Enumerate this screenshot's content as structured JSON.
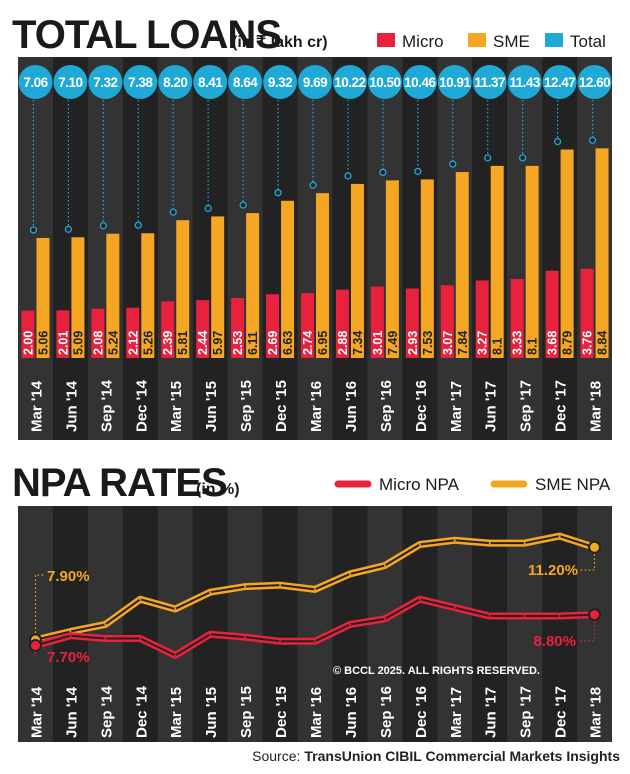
{
  "colors": {
    "micro": "#e8213d",
    "sme": "#f5a623",
    "total": "#1fa9d6",
    "panel": "#222222",
    "stripe": "#333333",
    "text": "#1a1a1a",
    "white": "#ffffff"
  },
  "chart_data": [
    {
      "type": "bar",
      "title": "TOTAL LOANS",
      "subtitle": "(in ₹ lakh cr)",
      "legend": [
        "Micro",
        "SME",
        "Total"
      ],
      "categories": [
        "Mar '14",
        "Jun '14",
        "Sep '14",
        "Dec '14",
        "Mar '15",
        "Jun '15",
        "Sep '15",
        "Dec '15",
        "Mar '16",
        "Jun '16",
        "Sep '16",
        "Dec '16",
        "Mar '17",
        "Jun '17",
        "Sep '17",
        "Dec '17",
        "Mar '18"
      ],
      "series": [
        {
          "name": "Micro",
          "values": [
            2.0,
            2.01,
            2.08,
            2.12,
            2.39,
            2.44,
            2.53,
            2.69,
            2.74,
            2.88,
            3.01,
            2.93,
            3.07,
            3.27,
            3.33,
            3.68,
            3.76
          ],
          "labels": [
            "2.00",
            "2.01",
            "2.08",
            "2.12",
            "2.39",
            "2.44",
            "2.53",
            "2.69",
            "2.74",
            "2.88",
            "3.01",
            "2.93",
            "3.07",
            "3.27",
            "3.33",
            "3.68",
            "3.76"
          ]
        },
        {
          "name": "SME",
          "values": [
            5.06,
            5.09,
            5.24,
            5.26,
            5.81,
            5.97,
            6.11,
            6.63,
            6.95,
            7.34,
            7.49,
            7.53,
            7.84,
            8.1,
            8.1,
            8.79,
            8.84
          ],
          "labels": [
            "5.06",
            "5.09",
            "5.24",
            "5.26",
            "5.81",
            "5.97",
            "6.11",
            "6.63",
            "6.95",
            "7.34",
            "7.49",
            "7.53",
            "7.84",
            "8.1",
            "8.1",
            "8.79",
            "8.84"
          ]
        }
      ],
      "totals": [
        "7.06",
        "7.10",
        "7.32",
        "7.38",
        "8.20",
        "8.41",
        "8.64",
        "9.32",
        "9.69",
        "10.22",
        "10.50",
        "10.46",
        "10.91",
        "11.37",
        "11.43",
        "12.47",
        "12.60"
      ],
      "ylim": [
        0,
        9
      ]
    },
    {
      "type": "line",
      "title": "NPA RATES",
      "subtitle": "(in %)",
      "legend": [
        "Micro NPA",
        "SME NPA"
      ],
      "categories": [
        "Mar '14",
        "Jun '14",
        "Sep '14",
        "Dec '14",
        "Mar '15",
        "Jun '15",
        "Sep '15",
        "Dec '15",
        "Mar '16",
        "Jun '16",
        "Sep '16",
        "Dec '16",
        "Mar '17",
        "Jun '17",
        "Sep '17",
        "Dec '17",
        "Mar '18"
      ],
      "series": [
        {
          "name": "Micro NPA",
          "values": [
            7.7,
            8.05,
            7.95,
            7.95,
            7.35,
            8.1,
            8.0,
            7.85,
            7.85,
            8.45,
            8.65,
            9.35,
            9.05,
            8.75,
            8.75,
            8.75,
            8.8
          ]
        },
        {
          "name": "SME NPA",
          "values": [
            7.9,
            8.2,
            8.45,
            9.35,
            9.0,
            9.6,
            9.8,
            9.85,
            9.7,
            10.25,
            10.55,
            11.3,
            11.45,
            11.35,
            11.35,
            11.6,
            11.2
          ]
        }
      ],
      "annotations": [
        {
          "text": "7.90%",
          "series": "SME NPA",
          "index": 0
        },
        {
          "text": "7.70%",
          "series": "Micro NPA",
          "index": 0
        },
        {
          "text": "11.20%",
          "series": "SME NPA",
          "index": 16
        },
        {
          "text": "8.80%",
          "series": "Micro NPA",
          "index": 16
        }
      ],
      "ylim": [
        6.4,
        12.6
      ]
    }
  ],
  "copyright": "© BCCL 2025. ALL RIGHTS RESERVED.",
  "footer": {
    "source_label": "Source:",
    "source_name": "TransUnion CIBIL Commercial Markets Insights"
  }
}
